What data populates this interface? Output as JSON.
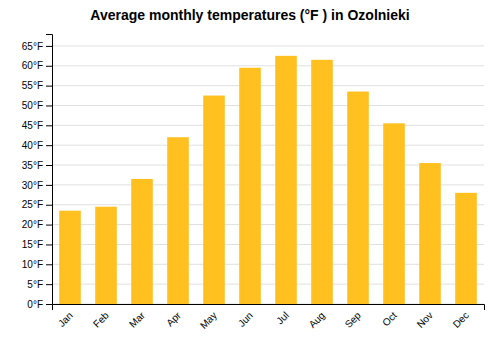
{
  "chart_data": {
    "type": "bar",
    "title": "Average monthly temperatures (°F ) in Ozolnieki",
    "categories": [
      "Jan",
      "Feb",
      "Mar",
      "Apr",
      "May",
      "Jun",
      "Jul",
      "Aug",
      "Sep",
      "Oct",
      "Nov",
      "Dec"
    ],
    "values": [
      23.5,
      24.5,
      31.5,
      42.0,
      52.5,
      59.5,
      62.5,
      61.5,
      53.5,
      45.5,
      35.5,
      28.0
    ],
    "color": "#FFC020",
    "ylim": [
      0,
      68
    ],
    "yticks": [
      {
        "value": 0,
        "label": "0°F"
      },
      {
        "value": 5,
        "label": "5°F"
      },
      {
        "value": 10,
        "label": "10°F"
      },
      {
        "value": 15,
        "label": "15°F"
      },
      {
        "value": 20,
        "label": "20°F"
      },
      {
        "value": 25,
        "label": "25°F"
      },
      {
        "value": 30,
        "label": "30°F"
      },
      {
        "value": 35,
        "label": "35°F"
      },
      {
        "value": 40,
        "label": "40°F"
      },
      {
        "value": 45,
        "label": "45°F"
      },
      {
        "value": 50,
        "label": "50°F"
      },
      {
        "value": 55,
        "label": "55°F"
      },
      {
        "value": 60,
        "label": "60°F"
      },
      {
        "value": 65,
        "label": "65°F"
      }
    ],
    "grid": true
  }
}
